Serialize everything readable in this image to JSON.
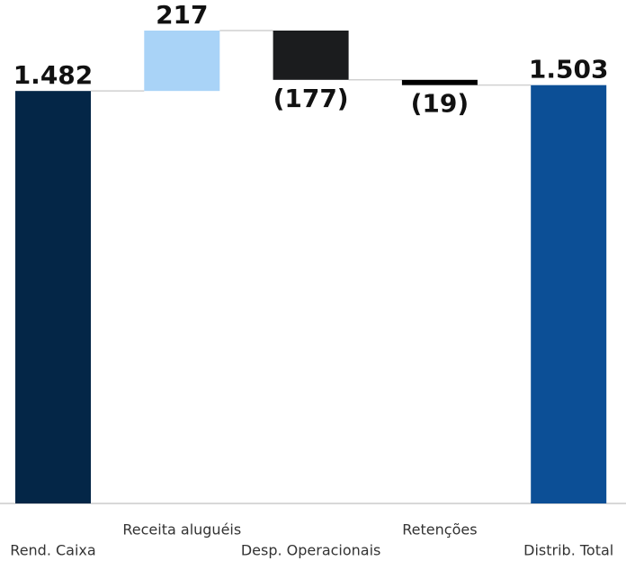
{
  "chart_data": {
    "type": "waterfall",
    "categories": [
      "Rend. Caixa",
      "Receita aluguéis",
      "Desp. Operacionais",
      "Retenções",
      "Distrib. Total"
    ],
    "values": [
      1482,
      217,
      -177,
      -19,
      1503
    ],
    "value_labels": [
      "1.482",
      "217",
      "(177)",
      "(19)",
      "1.503"
    ],
    "measures": [
      "absolute",
      "relative",
      "relative",
      "relative",
      "total"
    ],
    "colors": [
      "#042647",
      "#a9d3f7",
      "#1b1c1e",
      "#000000",
      "#0c4f96"
    ]
  }
}
